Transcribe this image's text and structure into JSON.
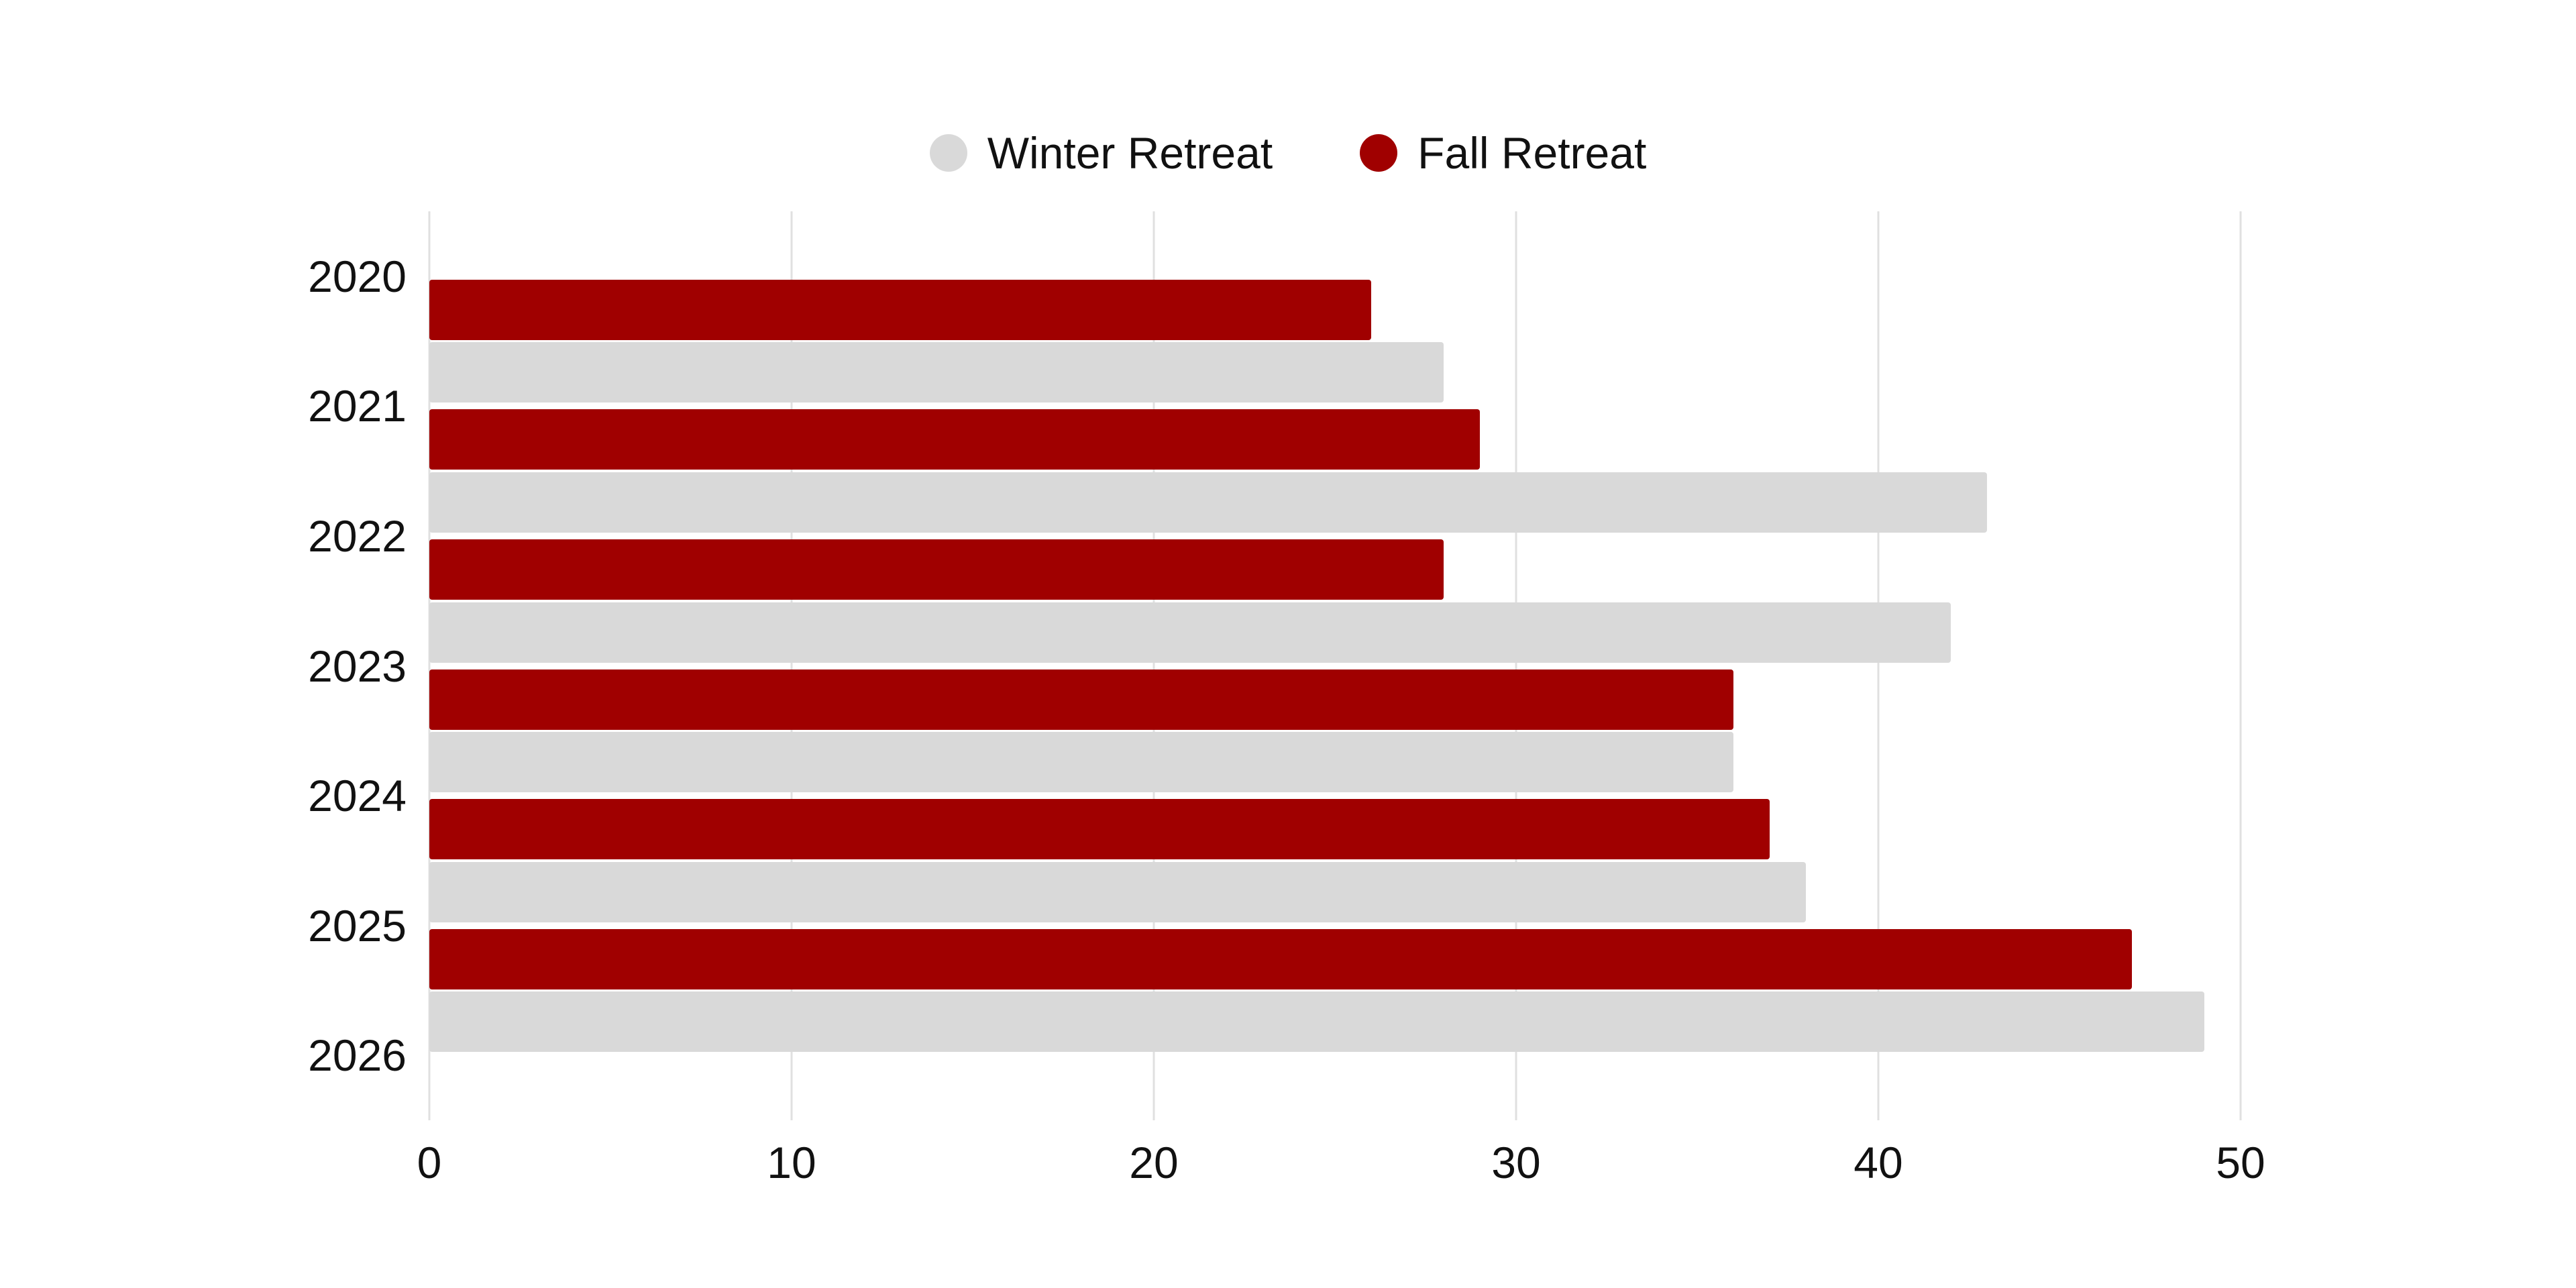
{
  "chart_data": {
    "type": "bar",
    "orientation": "horizontal",
    "title": "",
    "xlabel": "",
    "ylabel": "",
    "categories": [
      "2020",
      "2021",
      "2022",
      "2023",
      "2024",
      "2025",
      "2026"
    ],
    "series": [
      {
        "name": "Winter Retreat",
        "color": "#d9d9d9",
        "values": [
          null,
          28,
          43,
          42,
          36,
          38,
          49
        ]
      },
      {
        "name": "Fall Retreat",
        "color": "#a00000",
        "values": [
          26,
          29,
          28,
          36,
          37,
          47,
          null
        ]
      }
    ],
    "xlim": [
      0,
      50
    ],
    "xticks": [
      0,
      10,
      20,
      30,
      40,
      50
    ],
    "grid": true,
    "gridline_color": "#e0e0e0",
    "legend_position": "top",
    "background_color": "#ffffff",
    "text_color": "#111111"
  }
}
